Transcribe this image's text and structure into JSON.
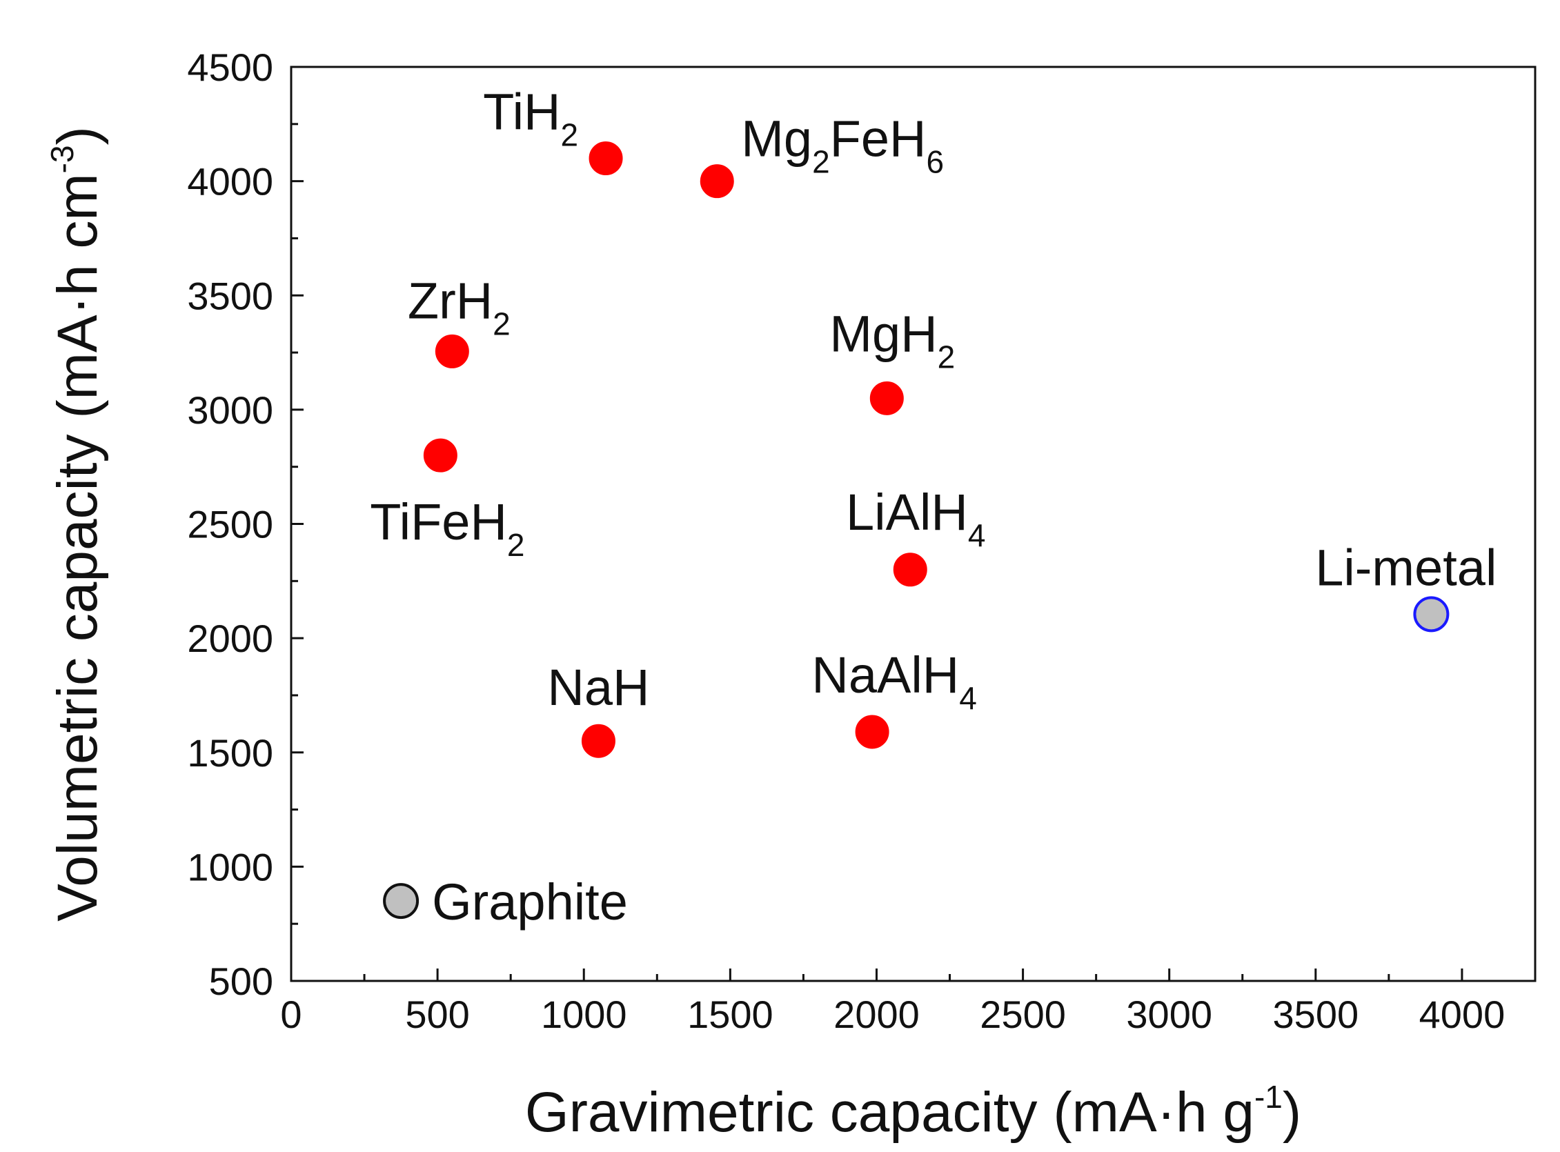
{
  "chart_data": {
    "type": "scatter",
    "title": "",
    "xlabel": {
      "main": "Gravimetric capacity (mA·h g",
      "sup": "-1",
      "tail": ")"
    },
    "ylabel": {
      "main": "Volumetric capacity (mA·h cm",
      "sup": "-3",
      "tail": ")"
    },
    "xlim": [
      0,
      4250
    ],
    "ylim": [
      500,
      4500
    ],
    "xticks": [
      0,
      500,
      1000,
      1500,
      2000,
      2500,
      3000,
      3500,
      4000
    ],
    "yticks": [
      500,
      1000,
      1500,
      2000,
      2500,
      3000,
      3500,
      4000,
      4500
    ],
    "grid": false,
    "colors": {
      "hydride": "#ff0000",
      "reference": "#c0c0c0",
      "reference_edge_li": "#1a1aff"
    },
    "points": [
      {
        "name": "TiH2",
        "label": {
          "base": "TiH",
          "sub": "2",
          "pos": "above-left"
        },
        "x": 1075,
        "y": 4100,
        "group": "hydride"
      },
      {
        "name": "Mg2FeH6",
        "label": {
          "parts": [
            {
              "t": "Mg"
            },
            {
              "s": "2"
            },
            {
              "t": "FeH"
            },
            {
              "s": "6"
            }
          ],
          "pos": "above-right"
        },
        "x": 1455,
        "y": 4000,
        "group": "hydride"
      },
      {
        "name": "ZrH2",
        "label": {
          "base": "ZrH",
          "sub": "2",
          "pos": "above"
        },
        "x": 550,
        "y": 3255,
        "group": "hydride"
      },
      {
        "name": "MgH2",
        "label": {
          "base": "MgH",
          "sub": "2",
          "pos": "above"
        },
        "x": 2035,
        "y": 3050,
        "group": "hydride"
      },
      {
        "name": "TiFeH2",
        "label": {
          "base": "TiFeH",
          "sub": "2",
          "pos": "below"
        },
        "x": 510,
        "y": 2800,
        "group": "hydride"
      },
      {
        "name": "LiAlH4",
        "label": {
          "base": "LiAlH",
          "sub": "4",
          "pos": "above"
        },
        "x": 2115,
        "y": 2300,
        "group": "hydride"
      },
      {
        "name": "NaH",
        "label": {
          "base": "NaH",
          "sub": "",
          "pos": "above"
        },
        "x": 1050,
        "y": 1550,
        "group": "hydride"
      },
      {
        "name": "NaAlH4",
        "label": {
          "base": "NaAlH",
          "sub": "4",
          "pos": "above"
        },
        "x": 1985,
        "y": 1590,
        "group": "hydride"
      },
      {
        "name": "Graphite",
        "label": {
          "base": "Graphite",
          "sub": "",
          "pos": "right"
        },
        "x": 375,
        "y": 850,
        "group": "reference"
      },
      {
        "name": "Li-metal",
        "label": {
          "base": "Li-metal",
          "sub": "",
          "pos": "above-left"
        },
        "x": 3895,
        "y": 2105,
        "group": "reference",
        "edge": "reference_edge_li"
      }
    ]
  }
}
